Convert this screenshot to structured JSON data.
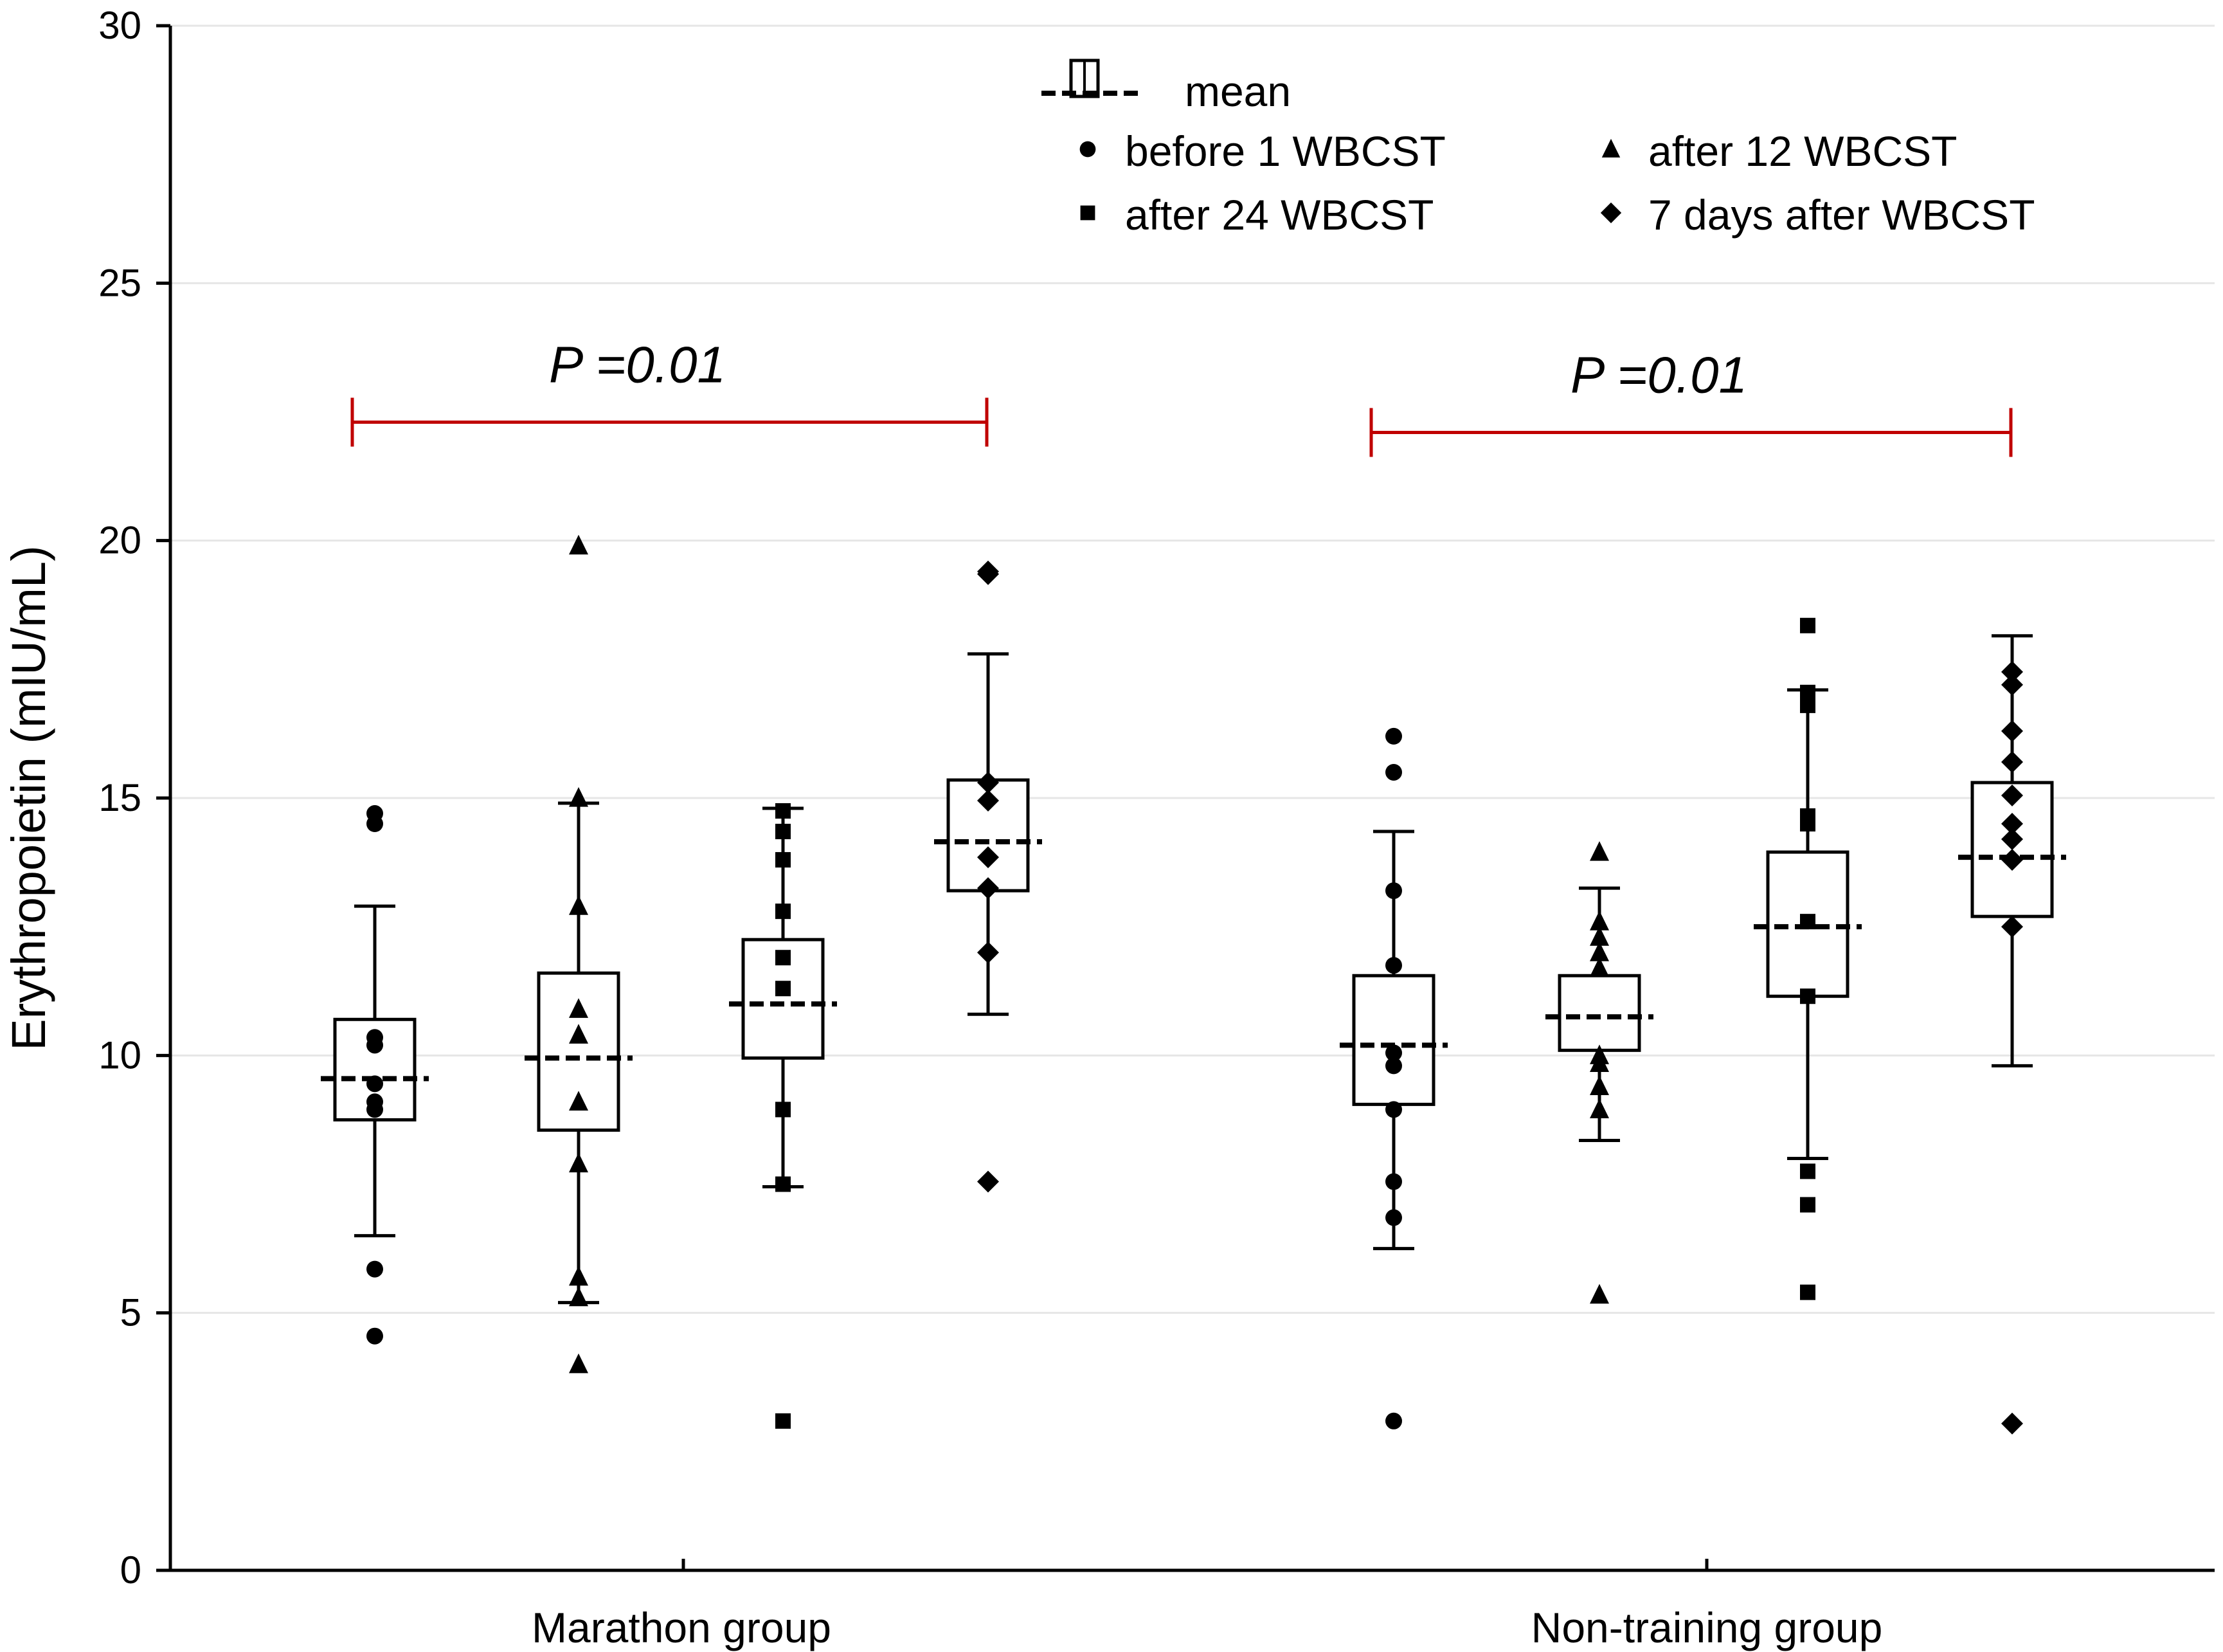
{
  "chart_data": {
    "type": "box",
    "title": "",
    "xlabel": "",
    "ylabel": "Erythropoietin (mIU/mL)",
    "ylim": [
      0,
      30
    ],
    "yticks": [
      0,
      5,
      10,
      15,
      20,
      25,
      30
    ],
    "ytick_labels": [
      "0",
      "5",
      "10",
      "15",
      "20",
      "25",
      "30"
    ],
    "grid": true,
    "categories": [
      "Marathon group",
      "Non-training group"
    ],
    "legend": {
      "position": "top-center",
      "mean_label": "mean",
      "items": [
        {
          "key": "before",
          "label": "before 1 WBCST",
          "marker": "circle"
        },
        {
          "key": "after12",
          "label": "after 12 WBCST",
          "marker": "triangle"
        },
        {
          "key": "after24",
          "label": "after 24 WBCST",
          "marker": "square"
        },
        {
          "key": "after7d",
          "label": "7 days after WBCST",
          "marker": "diamond"
        }
      ]
    },
    "annotations": [
      {
        "group": "Marathon group",
        "text": "P =0.01",
        "from_series": "before",
        "to_series": "after7d",
        "y": 22.3,
        "color": "#c00000"
      },
      {
        "group": "Non-training group",
        "text": "P =0.01",
        "from_series": "before",
        "to_series": "after7d",
        "y": 22.1,
        "color": "#c00000"
      }
    ],
    "groups": [
      {
        "name": "Marathon group",
        "series": [
          {
            "key": "before",
            "mean": 9.55,
            "box": [
              8.75,
              10.7
            ],
            "whisker": [
              6.5,
              12.9
            ],
            "points": [
              14.7,
              14.5,
              10.35,
              10.2,
              9.45,
              9.1,
              8.95,
              5.85,
              4.55
            ]
          },
          {
            "key": "after12",
            "mean": 9.95,
            "box": [
              8.55,
              11.6
            ],
            "whisker": [
              5.2,
              14.9
            ],
            "points": [
              19.9,
              15.0,
              12.9,
              10.9,
              10.4,
              9.1,
              7.9,
              5.7,
              5.3,
              4.0
            ]
          },
          {
            "key": "after24",
            "mean": 11.0,
            "box": [
              9.95,
              12.25
            ],
            "whisker": [
              7.45,
              14.8
            ],
            "points": [
              14.75,
              14.35,
              13.8,
              12.8,
              11.9,
              11.3,
              8.95,
              7.5,
              2.9
            ]
          },
          {
            "key": "after7d",
            "mean": 14.15,
            "box": [
              13.2,
              15.35
            ],
            "whisker": [
              10.8,
              17.8
            ],
            "points": [
              19.4,
              19.35,
              15.3,
              14.95,
              13.85,
              13.25,
              12.0,
              7.55
            ]
          }
        ]
      },
      {
        "name": "Non-training group",
        "series": [
          {
            "key": "before",
            "mean": 10.2,
            "box": [
              9.05,
              11.55
            ],
            "whisker": [
              6.25,
              14.35
            ],
            "points": [
              16.2,
              15.5,
              13.2,
              11.75,
              10.05,
              9.8,
              8.95,
              7.55,
              6.85,
              2.9
            ]
          },
          {
            "key": "after12",
            "mean": 10.75,
            "box": [
              10.1,
              11.55
            ],
            "whisker": [
              8.35,
              13.25
            ],
            "points": [
              13.95,
              12.6,
              12.3,
              12.0,
              11.7,
              10.0,
              9.85,
              9.4,
              8.95,
              5.35
            ]
          },
          {
            "key": "after24",
            "mean": 12.5,
            "box": [
              11.15,
              13.95
            ],
            "whisker": [
              8.0,
              17.1
            ],
            "points": [
              18.35,
              17.05,
              16.8,
              14.65,
              14.5,
              12.6,
              11.15,
              7.75,
              7.1,
              5.4
            ]
          },
          {
            "key": "after7d",
            "mean": 13.85,
            "box": [
              12.7,
              15.3
            ],
            "whisker": [
              9.8,
              18.15
            ],
            "points": [
              17.45,
              17.2,
              16.3,
              15.7,
              15.05,
              14.5,
              14.2,
              13.8,
              12.5,
              2.85
            ]
          }
        ]
      }
    ]
  }
}
